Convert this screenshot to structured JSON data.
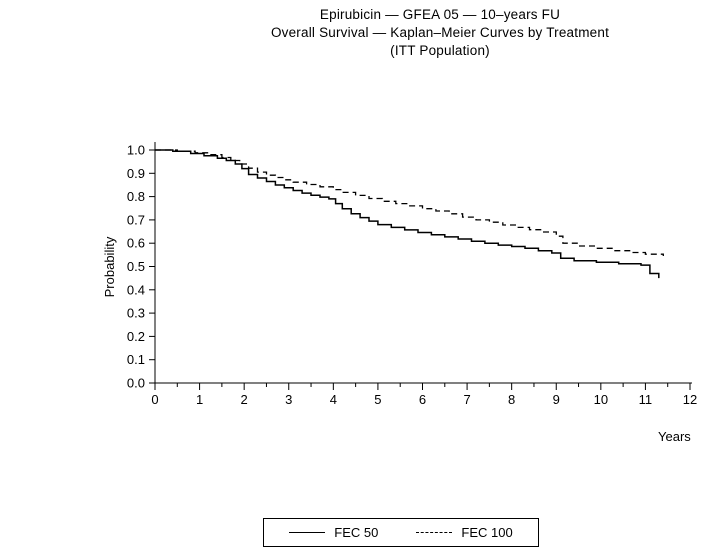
{
  "chart_data": {
    "type": "line",
    "chart_kind": "kaplan-meier-step",
    "title": "Epirubicin — GFEA 05 — 10–years FU",
    "subtitle": "Overall Survival — Kaplan–Meier Curves by Treatment",
    "subtitle2": "(ITT Population)",
    "xlabel": "Years",
    "ylabel": "Probability",
    "xlim": [
      0,
      12
    ],
    "ylim": [
      0.0,
      1.0
    ],
    "x_ticks": [
      0,
      1,
      2,
      3,
      4,
      5,
      6,
      7,
      8,
      9,
      10,
      11,
      12
    ],
    "x_minor_step": 0.5,
    "y_ticks": [
      0.0,
      0.1,
      0.2,
      0.3,
      0.4,
      0.5,
      0.6,
      0.7,
      0.8,
      0.9,
      1.0
    ],
    "grid": false,
    "legend_position": "bottom",
    "line_color": "#000000",
    "series": [
      {
        "name": "FEC 50",
        "line_style": "solid",
        "x": [
          0,
          0.4,
          0.8,
          1.1,
          1.4,
          1.6,
          1.8,
          1.95,
          2.1,
          2.3,
          2.5,
          2.7,
          2.9,
          3.1,
          3.3,
          3.5,
          3.7,
          3.9,
          4.05,
          4.2,
          4.4,
          4.6,
          4.8,
          5.0,
          5.3,
          5.6,
          5.9,
          6.2,
          6.5,
          6.8,
          7.1,
          7.4,
          7.7,
          8.0,
          8.3,
          8.6,
          8.9,
          9.1,
          9.4,
          9.9,
          10.4,
          10.9,
          11.1,
          11.3
        ],
        "y": [
          1.0,
          0.995,
          0.985,
          0.975,
          0.965,
          0.955,
          0.94,
          0.92,
          0.895,
          0.88,
          0.865,
          0.85,
          0.838,
          0.826,
          0.815,
          0.806,
          0.798,
          0.79,
          0.77,
          0.748,
          0.726,
          0.71,
          0.695,
          0.68,
          0.668,
          0.657,
          0.646,
          0.636,
          0.627,
          0.618,
          0.608,
          0.6,
          0.592,
          0.586,
          0.578,
          0.568,
          0.558,
          0.535,
          0.525,
          0.518,
          0.512,
          0.506,
          0.47,
          0.45
        ]
      },
      {
        "name": "FEC 100",
        "line_style": "dashed",
        "x": [
          0,
          0.5,
          0.9,
          1.2,
          1.5,
          1.7,
          1.9,
          2.1,
          2.3,
          2.5,
          2.7,
          2.9,
          3.1,
          3.4,
          3.7,
          4.0,
          4.2,
          4.5,
          4.8,
          5.1,
          5.4,
          5.7,
          6.0,
          6.3,
          6.6,
          6.9,
          7.2,
          7.5,
          7.8,
          8.1,
          8.4,
          8.7,
          9.0,
          9.15,
          9.5,
          9.9,
          10.3,
          10.7,
          11.0,
          11.4
        ],
        "y": [
          1.0,
          0.995,
          0.988,
          0.98,
          0.968,
          0.955,
          0.94,
          0.922,
          0.905,
          0.892,
          0.882,
          0.872,
          0.862,
          0.852,
          0.842,
          0.83,
          0.818,
          0.805,
          0.792,
          0.78,
          0.77,
          0.76,
          0.748,
          0.738,
          0.726,
          0.712,
          0.7,
          0.69,
          0.678,
          0.668,
          0.658,
          0.648,
          0.63,
          0.6,
          0.588,
          0.578,
          0.568,
          0.56,
          0.553,
          0.545
        ]
      }
    ]
  }
}
